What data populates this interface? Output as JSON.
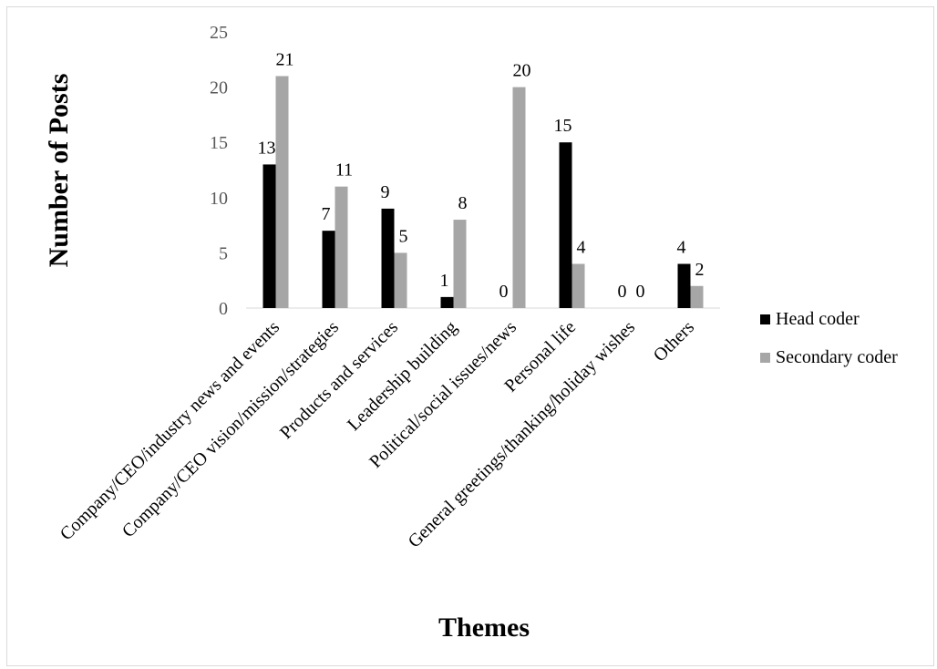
{
  "chart_data": {
    "type": "bar",
    "categories": [
      "Company/CEO/industry news and events",
      "Company/CEO vision/mission/strategies",
      "Products and services",
      "Leadership building",
      "Political/social issues/news",
      "Personal life",
      "General greetings/thanking/holiday wishes",
      "Others"
    ],
    "series": [
      {
        "name": "Head coder",
        "values": [
          13,
          7,
          9,
          1,
          0,
          15,
          0,
          4
        ],
        "color": "#000000"
      },
      {
        "name": "Secondary coder",
        "values": [
          21,
          11,
          5,
          8,
          20,
          4,
          0,
          2
        ],
        "color": "#a6a6a6"
      }
    ],
    "xlabel": "Themes",
    "ylabel": "Number of Posts",
    "ylim": [
      0,
      25
    ],
    "yticks": [
      0,
      5,
      10,
      15,
      20,
      25
    ],
    "grid": false,
    "legend_position": "right",
    "data_labels": true
  }
}
